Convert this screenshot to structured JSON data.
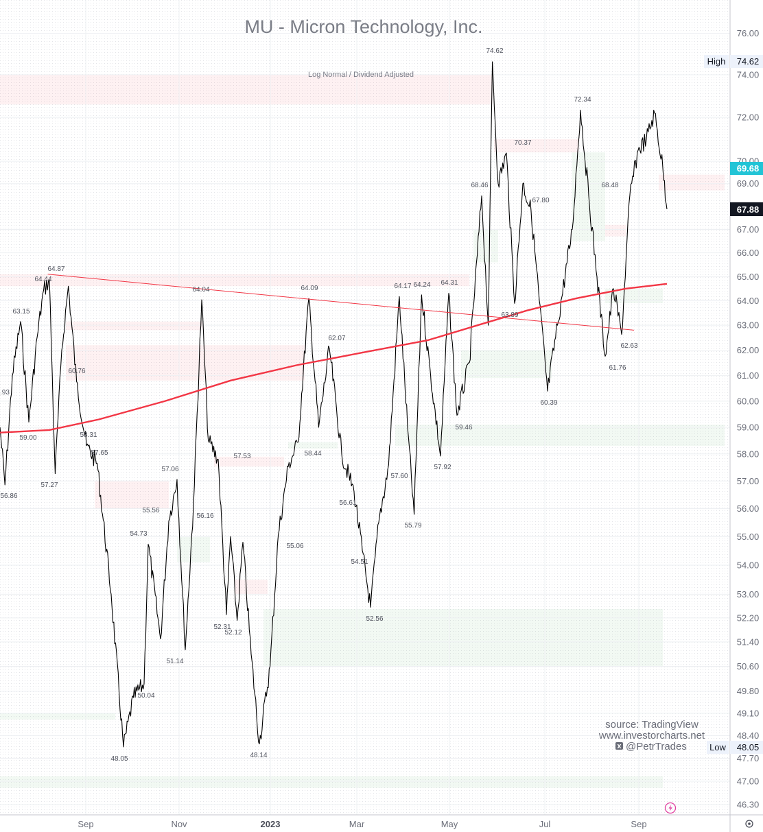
{
  "chart_data": {
    "type": "line",
    "title": "MU - Micron Technology, Inc.",
    "subtitle": "Log Normal / Dividend Adjusted",
    "y_axis": {
      "scale": "log",
      "ticks": [
        "76.00",
        "74.00",
        "72.00",
        "70.00",
        "69.00",
        "67.00",
        "66.00",
        "65.00",
        "64.00",
        "63.00",
        "62.00",
        "61.00",
        "60.00",
        "59.00",
        "58.00",
        "57.00",
        "56.00",
        "55.00",
        "54.00",
        "53.00",
        "52.20",
        "51.40",
        "50.60",
        "49.80",
        "49.10",
        "48.40",
        "47.70",
        "47.00",
        "46.30"
      ]
    },
    "x_axis": {
      "ticks": [
        {
          "label": "Sep",
          "bold": false
        },
        {
          "label": "Nov",
          "bold": false
        },
        {
          "label": "2023",
          "bold": true
        },
        {
          "label": "Mar",
          "bold": false
        },
        {
          "label": "May",
          "bold": false
        },
        {
          "label": "Jul",
          "bold": false
        },
        {
          "label": "Sep",
          "bold": false
        }
      ]
    },
    "series": [
      {
        "color": "#000000",
        "points": [
          [
            0.0,
            59.0
          ],
          [
            0.6,
            56.86
          ],
          [
            1.5,
            61.0
          ],
          [
            2.5,
            63.15
          ],
          [
            3.5,
            59.2
          ],
          [
            4.5,
            62.5
          ],
          [
            5.3,
            64.44
          ],
          [
            6.0,
            64.87
          ],
          [
            6.7,
            57.27
          ],
          [
            7.5,
            62.0
          ],
          [
            8.3,
            64.6
          ],
          [
            9.3,
            60.76
          ],
          [
            10.5,
            58.31
          ],
          [
            11.8,
            57.65
          ],
          [
            13.5,
            53.0
          ],
          [
            15.0,
            48.05
          ],
          [
            16.2,
            49.6
          ],
          [
            17.5,
            50.04
          ],
          [
            18.0,
            54.73
          ],
          [
            19.5,
            51.5
          ],
          [
            20.5,
            55.56
          ],
          [
            21.5,
            57.06
          ],
          [
            22.5,
            51.14
          ],
          [
            23.5,
            56.16
          ],
          [
            24.5,
            64.04
          ],
          [
            25.3,
            58.5
          ],
          [
            26.5,
            57.8
          ],
          [
            27.5,
            52.31
          ],
          [
            28.0,
            55.0
          ],
          [
            28.8,
            52.12
          ],
          [
            29.5,
            54.8
          ],
          [
            30.5,
            51.0
          ],
          [
            31.5,
            48.14
          ],
          [
            32.8,
            50.6
          ],
          [
            33.8,
            55.06
          ],
          [
            35.0,
            57.53
          ],
          [
            36.2,
            58.44
          ],
          [
            37.5,
            64.09
          ],
          [
            38.7,
            59.0
          ],
          [
            40.0,
            62.07
          ],
          [
            41.5,
            58.0
          ],
          [
            43.0,
            56.61
          ],
          [
            44.0,
            54.51
          ],
          [
            45.0,
            52.56
          ],
          [
            46.0,
            55.5
          ],
          [
            47.2,
            57.6
          ],
          [
            48.5,
            64.17
          ],
          [
            49.5,
            59.0
          ],
          [
            50.3,
            55.79
          ],
          [
            51.2,
            64.24
          ],
          [
            52.3,
            61.0
          ],
          [
            53.5,
            57.92
          ],
          [
            54.5,
            64.31
          ],
          [
            55.5,
            59.46
          ],
          [
            57.0,
            61.5
          ],
          [
            58.5,
            68.46
          ],
          [
            59.3,
            63.0
          ],
          [
            59.8,
            74.62
          ],
          [
            60.5,
            69.0
          ],
          [
            61.5,
            70.37
          ],
          [
            62.5,
            63.89
          ],
          [
            63.5,
            69.0
          ],
          [
            64.5,
            67.8
          ],
          [
            65.5,
            64.0
          ],
          [
            66.5,
            60.39
          ],
          [
            67.7,
            63.0
          ],
          [
            69.5,
            67.0
          ],
          [
            70.5,
            72.34
          ],
          [
            71.5,
            68.48
          ],
          [
            72.5,
            65.0
          ],
          [
            73.5,
            61.76
          ],
          [
            74.5,
            64.5
          ],
          [
            75.5,
            62.63
          ],
          [
            76.5,
            68.5
          ],
          [
            77.5,
            70.5
          ],
          [
            78.5,
            71.0
          ],
          [
            79.5,
            72.2
          ],
          [
            80.5,
            69.7
          ],
          [
            81.0,
            67.88
          ]
        ]
      },
      {
        "color": "#f23645",
        "points": [
          [
            0.0,
            58.8
          ],
          [
            6.0,
            58.9
          ],
          [
            12.0,
            59.3
          ],
          [
            20.0,
            60.0
          ],
          [
            28.0,
            60.8
          ],
          [
            36.0,
            61.4
          ],
          [
            44.0,
            61.9
          ],
          [
            52.0,
            62.4
          ],
          [
            58.0,
            63.0
          ],
          [
            64.0,
            63.6
          ],
          [
            70.0,
            64.1
          ],
          [
            76.0,
            64.5
          ],
          [
            81.0,
            64.7
          ]
        ]
      },
      {
        "color": "#f23645",
        "points": [
          [
            5.8,
            65.1
          ],
          [
            77.0,
            62.8
          ]
        ]
      }
    ],
    "annotations": [
      "74.62",
      "72.34",
      "70.37",
      "68.46",
      "68.48",
      "67.80",
      "64.87",
      "64.44",
      "64.04",
      "64.09",
      "64.17",
      "64.24",
      "64.31",
      "63.15",
      "63.89",
      "62.07",
      "62.63",
      "61.76",
      "60.76",
      "60.39",
      "59.46",
      "59.00",
      "58.31",
      "58.44",
      "57.65",
      "57.53",
      "57.27",
      "57.06",
      "57.60",
      "57.92",
      "56.86",
      "56.61",
      "56.16",
      "55.56",
      "55.79",
      "55.06",
      "54.73",
      "54.51",
      "52.56",
      "52.31",
      "52.12",
      "51.14",
      "50.04",
      "48.05",
      "48.14",
      ".93"
    ],
    "price_tags": {
      "high_label": "High",
      "high_value": "74.62",
      "current_a": "69.68",
      "current_b": "67.88",
      "low_label": "Low",
      "low_value": "48.05"
    },
    "zones_red": [
      {
        "x": [
          0,
          59.8
        ],
        "y": [
          72.6,
          74.0
        ]
      },
      {
        "x": [
          60.0,
          70.3
        ],
        "y": [
          70.4,
          71.0
        ]
      },
      {
        "x": [
          0,
          57.0
        ],
        "y": [
          64.6,
          65.1
        ]
      },
      {
        "x": [
          8.0,
          24.6
        ],
        "y": [
          62.8,
          63.15
        ]
      },
      {
        "x": [
          8.0,
          37.0
        ],
        "y": [
          60.8,
          62.2
        ]
      },
      {
        "x": [
          11.5,
          20.5
        ],
        "y": [
          56.0,
          57.0
        ]
      },
      {
        "x": [
          26.0,
          34.5
        ],
        "y": [
          57.53,
          57.9
        ]
      },
      {
        "x": [
          28.5,
          32.5
        ],
        "y": [
          53.0,
          53.5
        ]
      },
      {
        "x": [
          80.0,
          88.0
        ],
        "y": [
          68.7,
          69.4
        ]
      },
      {
        "x": [
          73.5,
          76.0
        ],
        "y": [
          66.7,
          67.2
        ]
      }
    ],
    "zones_green": [
      {
        "x": [
          57.5,
          60.5
        ],
        "y": [
          65.6,
          67.0
        ]
      },
      {
        "x": [
          32.0,
          80.5
        ],
        "y": [
          50.6,
          52.5
        ]
      },
      {
        "x": [
          0,
          14.0
        ],
        "y": [
          48.9,
          49.1
        ]
      },
      {
        "x": [
          48.0,
          88.0
        ],
        "y": [
          58.3,
          59.1
        ]
      },
      {
        "x": [
          56.0,
          67.0
        ],
        "y": [
          60.9,
          62.0
        ]
      },
      {
        "x": [
          21.5,
          25.5
        ],
        "y": [
          54.1,
          55.0
        ]
      },
      {
        "x": [
          35.0,
          41.0
        ],
        "y": [
          58.2,
          58.44
        ]
      },
      {
        "x": [
          73.5,
          80.5
        ],
        "y": [
          63.9,
          64.5
        ]
      },
      {
        "x": [
          0,
          80.5
        ],
        "y": [
          46.8,
          47.15
        ]
      },
      {
        "x": [
          69.5,
          73.5
        ],
        "y": [
          66.5,
          70.4
        ]
      }
    ],
    "credits": [
      "source: TradingView",
      "www.investorcharts.net",
      "@PetrTrades"
    ],
    "grid": true
  }
}
